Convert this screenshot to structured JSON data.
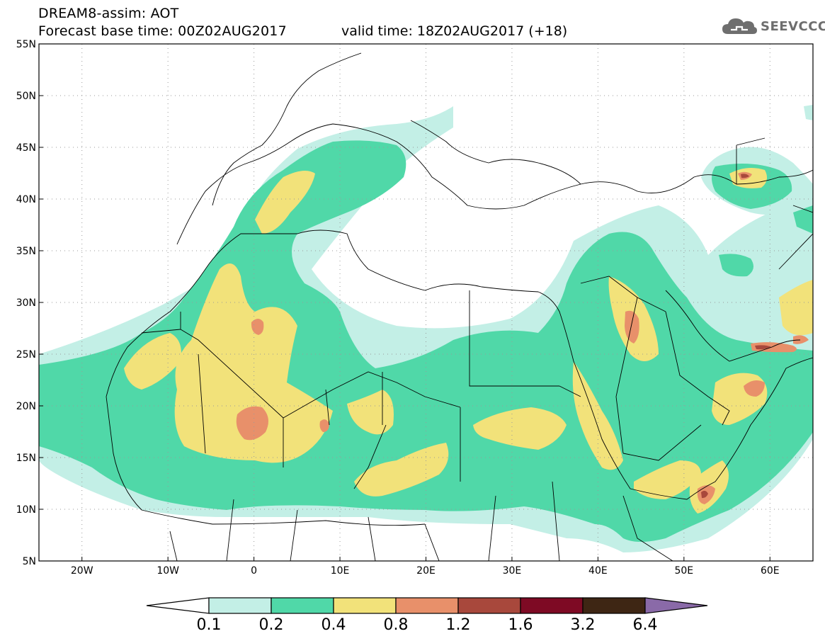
{
  "header": {
    "title": "DREAM8-assim: AOT",
    "base_time": "Forecast base time: 00Z02AUG2017",
    "valid_time": "valid time: 18Z02AUG2017 (+18)"
  },
  "logo": {
    "text": "SEEVCCC",
    "icon": "cloud-icon"
  },
  "map": {
    "projection": "lat-lon",
    "lon_range": [
      -25,
      65
    ],
    "lat_range": [
      5,
      55
    ],
    "lat_ticks": [
      "5N",
      "10N",
      "15N",
      "20N",
      "25N",
      "30N",
      "35N",
      "40N",
      "45N",
      "50N",
      "55N"
    ],
    "lon_ticks": [
      "20W",
      "10W",
      "0",
      "10E",
      "20E",
      "30E",
      "40E",
      "50E",
      "60E"
    ]
  },
  "colorbar": {
    "labels": [
      "0.1",
      "0.2",
      "0.4",
      "0.8",
      "1.2",
      "1.6",
      "3.2",
      "6.4"
    ],
    "colors": [
      "#ffffff",
      "#c3efe6",
      "#50d8a8",
      "#f2e27a",
      "#e8906a",
      "#a8483c",
      "#7e0a24",
      "#3e2614",
      "#8a6aa8"
    ]
  }
}
